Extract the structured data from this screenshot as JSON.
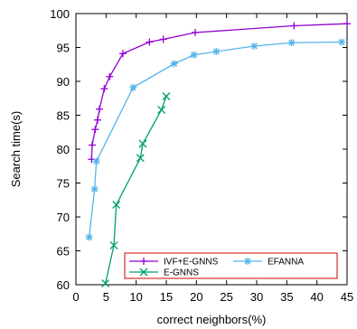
{
  "chart_data": {
    "type": "line",
    "title": "",
    "xlabel": "correct neighbors(%)",
    "ylabel": "Search time(s)",
    "xlim": [
      0,
      45
    ],
    "ylim": [
      60,
      100
    ],
    "xticks": [
      "0",
      "5",
      "10",
      "15",
      "20",
      "25",
      "30",
      "35",
      "40",
      "45"
    ],
    "yticks": [
      "60",
      "65",
      "70",
      "75",
      "80",
      "85",
      "90",
      "95",
      "100"
    ],
    "grid": false,
    "legend_position": "bottom-right",
    "series": [
      {
        "name": "IVF+E-GNNS",
        "color": "#9400d3",
        "marker": "plus",
        "x": [
          2.6,
          2.7,
          3.2,
          3.6,
          3.9,
          4.7,
          5.6,
          7.8,
          12.2,
          14.5,
          19.8,
          36.2,
          45.0
        ],
        "y": [
          78.5,
          80.6,
          82.9,
          84.3,
          85.9,
          88.9,
          90.7,
          94.1,
          95.8,
          96.2,
          97.2,
          98.2,
          98.5
        ]
      },
      {
        "name": "EFANNA",
        "color": "#56b4e9",
        "marker": "asterisk",
        "x": [
          2.2,
          3.1,
          3.4,
          9.5,
          16.3,
          19.6,
          23.3,
          29.6,
          35.8,
          44.1
        ],
        "y": [
          67.0,
          74.1,
          78.2,
          89.1,
          92.6,
          93.9,
          94.4,
          95.2,
          95.7,
          95.8
        ]
      },
      {
        "name": "E-GNNS",
        "color": "#009e73",
        "marker": "x",
        "x": [
          4.9,
          6.3,
          6.7,
          10.7,
          11.1,
          14.2,
          15.0
        ],
        "y": [
          60.2,
          65.8,
          71.8,
          78.7,
          80.8,
          85.8,
          87.8
        ]
      }
    ]
  }
}
